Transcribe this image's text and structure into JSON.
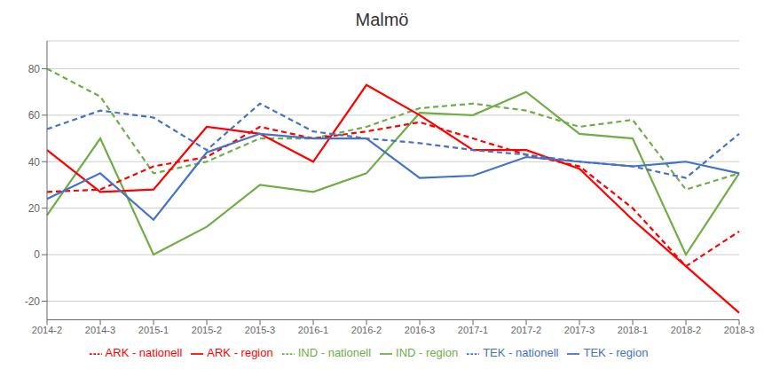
{
  "chart_data": {
    "type": "line",
    "title": "Malmö",
    "categories": [
      "2014-2",
      "2014-3",
      "2015-1",
      "2015-2",
      "2015-3",
      "2016-1",
      "2016-2",
      "2016-3",
      "2017-1",
      "2017-2",
      "2017-3",
      "2018-1",
      "2018-2",
      "2018-3"
    ],
    "series": [
      {
        "name": "IND - region",
        "color": "#70ad47",
        "line_style": "solid",
        "values": [
          17,
          50,
          0,
          12,
          30,
          27,
          35,
          61,
          60,
          70,
          52,
          50,
          0,
          35
        ]
      },
      {
        "name": "IND - nationell",
        "color": "#70ad47",
        "line_style": "dashed",
        "values": [
          80,
          68,
          35,
          40,
          50,
          50,
          55,
          63,
          65,
          62,
          55,
          58,
          28,
          35
        ]
      },
      {
        "name": "ARK - region",
        "color": "#ff0000",
        "line_style": "solid",
        "values": [
          45,
          27,
          28,
          55,
          52,
          40,
          73,
          60,
          45,
          45,
          37,
          15,
          -5,
          -25
        ]
      },
      {
        "name": "ARK - nationell",
        "color": "#ff0000",
        "line_style": "dashed",
        "values": [
          27,
          28,
          38,
          42,
          55,
          50,
          53,
          57,
          50,
          43,
          38,
          20,
          -5,
          10
        ]
      },
      {
        "name": "TEK - region",
        "color": "#4472c4",
        "line_style": "solid",
        "values": [
          24,
          35,
          15,
          44,
          52,
          50,
          50,
          33,
          34,
          42,
          40,
          38,
          40,
          35
        ]
      },
      {
        "name": "TEK - nationell",
        "color": "#4472c4",
        "line_style": "dashed",
        "values": [
          54,
          62,
          59,
          45,
          65,
          53,
          50,
          48,
          45,
          43,
          40,
          38,
          33,
          52
        ]
      }
    ],
    "ylim": [
      -28,
      92
    ],
    "yticks": [
      -20,
      0,
      20,
      40,
      60,
      80
    ],
    "grid": true,
    "legend": "bottom"
  }
}
